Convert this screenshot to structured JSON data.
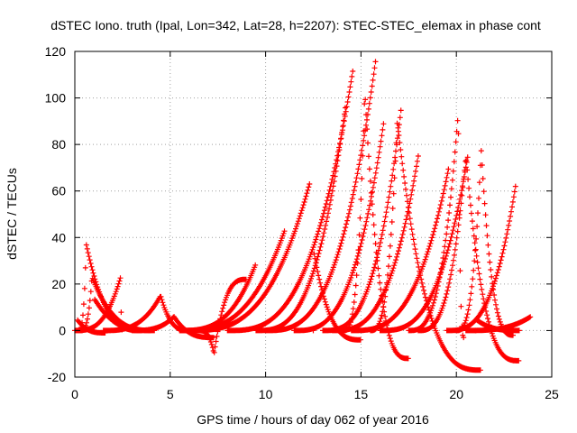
{
  "chart_data": {
    "type": "scatter",
    "title": "dSTEC Iono. truth (Ipal, Lon=342, Lat=28, h=2207): STEC-STEC_elemax in phase cont",
    "xlabel": "GPS time / hours of day 062 of year 2016",
    "ylabel": "dSTEC  / TECUs",
    "xlim": [
      0,
      25
    ],
    "ylim": [
      -20,
      120
    ],
    "xticks": [
      0,
      5,
      10,
      15,
      20,
      25
    ],
    "yticks": [
      -20,
      0,
      20,
      40,
      60,
      80,
      100,
      120
    ],
    "grid": true,
    "marker": "+",
    "color": "#ff0000",
    "arcs": [
      {
        "t0": 0.2,
        "t1": 3.5,
        "tpeak": 0.6,
        "peak": 37,
        "end": 0
      },
      {
        "t0": 0.3,
        "t1": 4.2,
        "tpeak": 0.9,
        "peak": 23,
        "end": 0
      },
      {
        "t0": 0.1,
        "t1": 1.6,
        "tpeak": 0.1,
        "peak": 5,
        "end": -1
      },
      {
        "t0": 0.0,
        "t1": 2.5,
        "tpeak": 2.4,
        "peak": 23,
        "end": 0
      },
      {
        "t0": 1.0,
        "t1": 4.0,
        "tpeak": 1.0,
        "peak": 14,
        "end": 0
      },
      {
        "t0": 1.5,
        "t1": 6.0,
        "tpeak": 4.5,
        "peak": 15,
        "end": 0
      },
      {
        "t0": 3.0,
        "t1": 7.3,
        "tpeak": 5.2,
        "peak": 6,
        "end": -3
      },
      {
        "t0": 6.5,
        "t1": 9.0,
        "tpeak": 7.3,
        "peak": -10,
        "end": 22
      },
      {
        "t0": 5.5,
        "t1": 9.5,
        "tpeak": 9.5,
        "peak": 29,
        "end": -3
      },
      {
        "t0": 5.5,
        "t1": 11.0,
        "tpeak": 11.0,
        "peak": 43,
        "end": -2
      },
      {
        "t0": 6.0,
        "t1": 12.3,
        "tpeak": 12.3,
        "peak": 63,
        "end": -3
      },
      {
        "t0": 8.0,
        "t1": 14.6,
        "tpeak": 14.6,
        "peak": 113,
        "end": 0
      },
      {
        "t0": 9.5,
        "t1": 14.2,
        "tpeak": 14.2,
        "peak": 97,
        "end": -2
      },
      {
        "t0": 12.5,
        "t1": 15.0,
        "tpeak": 12.5,
        "peak": 35,
        "end": -4
      },
      {
        "t0": 14.1,
        "t1": 17.5,
        "tpeak": 15.2,
        "peak": 103,
        "end": -12
      },
      {
        "t0": 10.0,
        "t1": 15.8,
        "tpeak": 15.8,
        "peak": 118,
        "end": -2
      },
      {
        "t0": 11.5,
        "t1": 16.2,
        "tpeak": 16.2,
        "peak": 90,
        "end": 0
      },
      {
        "t0": 13.0,
        "t1": 17.1,
        "tpeak": 17.1,
        "peak": 95,
        "end": 0
      },
      {
        "t0": 15.5,
        "t1": 21.3,
        "tpeak": 16.9,
        "peak": 90,
        "end": -17
      },
      {
        "t0": 13.5,
        "t1": 18.0,
        "tpeak": 18.0,
        "peak": 75,
        "end": -10
      },
      {
        "t0": 14.5,
        "t1": 19.6,
        "tpeak": 19.6,
        "peak": 70,
        "end": -12
      },
      {
        "t0": 17.5,
        "t1": 20.4,
        "tpeak": 20.1,
        "peak": 94,
        "end": -3
      },
      {
        "t0": 18.0,
        "t1": 23.3,
        "tpeak": 20.5,
        "peak": 75,
        "end": -13
      },
      {
        "t0": 16.0,
        "t1": 20.6,
        "tpeak": 20.6,
        "peak": 75,
        "end": -15
      },
      {
        "t0": 20.0,
        "t1": 23.0,
        "tpeak": 21.3,
        "peak": 78,
        "end": -2
      },
      {
        "t0": 19.5,
        "t1": 23.1,
        "tpeak": 23.1,
        "peak": 62,
        "end": 0
      },
      {
        "t0": 20.5,
        "t1": 23.9,
        "tpeak": 23.9,
        "peak": 6,
        "end": -2
      },
      {
        "t0": 21.0,
        "t1": 23.3,
        "tpeak": 21.0,
        "peak": 5,
        "end": 0
      }
    ]
  }
}
